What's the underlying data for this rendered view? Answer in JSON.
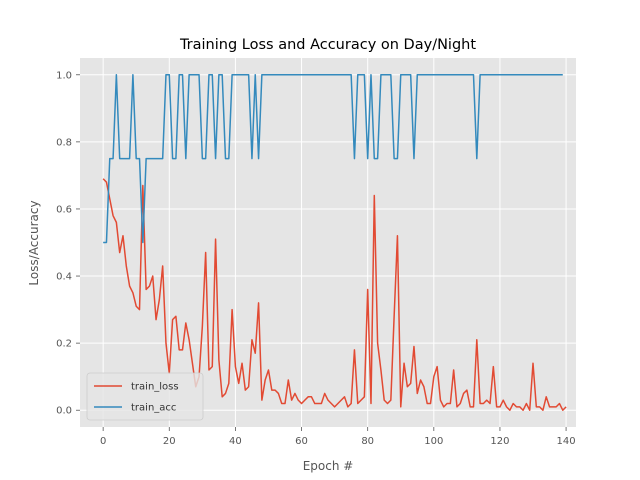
{
  "chart_data": {
    "type": "line",
    "title": "Training Loss and Accuracy on Day/Night",
    "xlabel": "Epoch #",
    "ylabel": "Loss/Accuracy",
    "xlim": [
      -7,
      143
    ],
    "ylim": [
      -0.05,
      1.05
    ],
    "xticks": [
      0,
      20,
      40,
      60,
      80,
      100,
      120,
      140
    ],
    "yticks": [
      0.0,
      0.2,
      0.4,
      0.6,
      0.8,
      1.0
    ],
    "xtick_labels": [
      "0",
      "20",
      "40",
      "60",
      "80",
      "100",
      "120",
      "140"
    ],
    "ytick_labels": [
      "0.0",
      "0.2",
      "0.4",
      "0.6",
      "0.8",
      "1.0"
    ],
    "grid": true,
    "background": "#e5e5e5",
    "legend": "lower-left",
    "series": [
      {
        "name": "train_loss",
        "color": "#e24a33",
        "values": [
          0.69,
          0.68,
          0.63,
          0.58,
          0.56,
          0.47,
          0.52,
          0.43,
          0.37,
          0.35,
          0.31,
          0.3,
          0.67,
          0.36,
          0.37,
          0.4,
          0.27,
          0.33,
          0.43,
          0.2,
          0.11,
          0.27,
          0.28,
          0.18,
          0.18,
          0.26,
          0.21,
          0.14,
          0.07,
          0.1,
          0.25,
          0.47,
          0.12,
          0.13,
          0.51,
          0.15,
          0.04,
          0.05,
          0.08,
          0.3,
          0.13,
          0.08,
          0.14,
          0.06,
          0.07,
          0.21,
          0.17,
          0.32,
          0.03,
          0.09,
          0.12,
          0.06,
          0.06,
          0.05,
          0.02,
          0.02,
          0.09,
          0.03,
          0.05,
          0.03,
          0.02,
          0.03,
          0.04,
          0.04,
          0.02,
          0.02,
          0.02,
          0.05,
          0.03,
          0.02,
          0.01,
          0.02,
          0.03,
          0.04,
          0.01,
          0.02,
          0.18,
          0.02,
          0.03,
          0.04,
          0.36,
          0.02,
          0.64,
          0.2,
          0.12,
          0.03,
          0.02,
          0.03,
          0.28,
          0.52,
          0.01,
          0.14,
          0.07,
          0.08,
          0.19,
          0.05,
          0.09,
          0.07,
          0.02,
          0.02,
          0.1,
          0.13,
          0.03,
          0.01,
          0.02,
          0.02,
          0.12,
          0.01,
          0.02,
          0.05,
          0.06,
          0.01,
          0.01,
          0.21,
          0.02,
          0.02,
          0.03,
          0.02,
          0.13,
          0.01,
          0.01,
          0.03,
          0.01,
          0.0,
          0.02,
          0.01,
          0.01,
          0.0,
          0.02,
          0.0,
          0.14,
          0.01,
          0.01,
          0.0,
          0.04,
          0.01,
          0.01,
          0.01,
          0.02,
          0.0,
          0.01
        ]
      },
      {
        "name": "train_acc",
        "color": "#348abd",
        "values": [
          0.5,
          0.5,
          0.75,
          0.75,
          1.0,
          0.75,
          0.75,
          0.75,
          0.75,
          1.0,
          0.75,
          0.75,
          0.5,
          0.75,
          0.75,
          0.75,
          0.75,
          0.75,
          0.75,
          1.0,
          1.0,
          0.75,
          0.75,
          1.0,
          1.0,
          0.75,
          1.0,
          1.0,
          1.0,
          1.0,
          0.75,
          0.75,
          1.0,
          1.0,
          0.75,
          1.0,
          1.0,
          0.75,
          0.75,
          1.0,
          1.0,
          1.0,
          1.0,
          1.0,
          1.0,
          0.75,
          1.0,
          0.75,
          1.0,
          1.0,
          1.0,
          1.0,
          1.0,
          1.0,
          1.0,
          1.0,
          1.0,
          1.0,
          1.0,
          1.0,
          1.0,
          1.0,
          1.0,
          1.0,
          1.0,
          1.0,
          1.0,
          1.0,
          1.0,
          1.0,
          1.0,
          1.0,
          1.0,
          1.0,
          1.0,
          1.0,
          0.75,
          1.0,
          1.0,
          1.0,
          0.75,
          1.0,
          0.75,
          0.75,
          1.0,
          1.0,
          1.0,
          1.0,
          0.75,
          0.75,
          1.0,
          1.0,
          1.0,
          1.0,
          0.75,
          1.0,
          1.0,
          1.0,
          1.0,
          1.0,
          1.0,
          1.0,
          1.0,
          1.0,
          1.0,
          1.0,
          1.0,
          1.0,
          1.0,
          1.0,
          1.0,
          1.0,
          1.0,
          0.75,
          1.0,
          1.0,
          1.0,
          1.0,
          1.0,
          1.0,
          1.0,
          1.0,
          1.0,
          1.0,
          1.0,
          1.0,
          1.0,
          1.0,
          1.0,
          1.0,
          1.0,
          1.0,
          1.0,
          1.0,
          1.0,
          1.0,
          1.0,
          1.0,
          1.0,
          1.0
        ]
      }
    ]
  }
}
